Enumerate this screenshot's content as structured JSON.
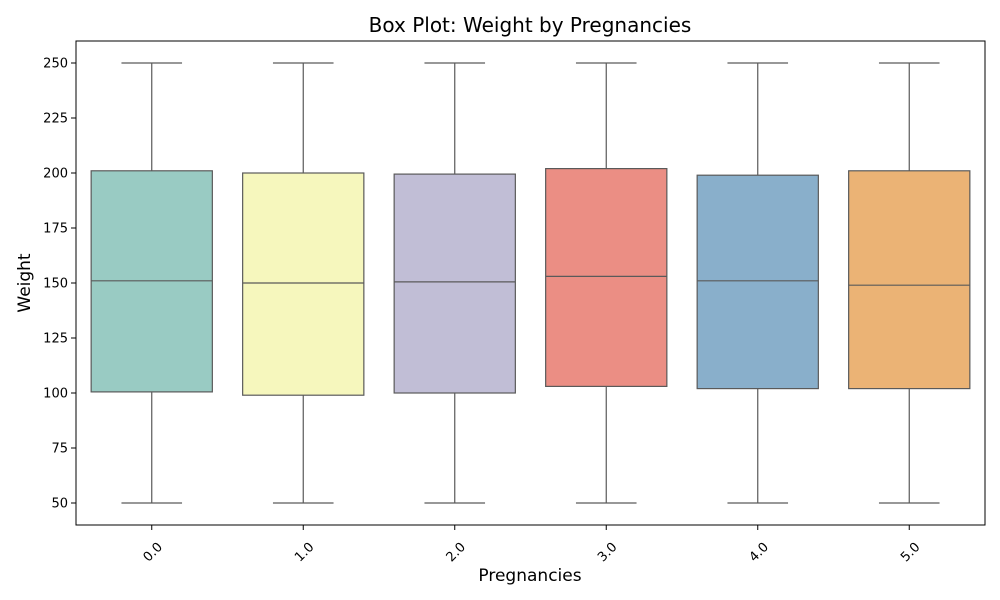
{
  "chart_data": {
    "type": "box",
    "title": "Box Plot: Weight by Pregnancies",
    "xlabel": "Pregnancies",
    "ylabel": "Weight",
    "ylim": [
      40,
      260
    ],
    "yticks": [
      50,
      75,
      100,
      125,
      150,
      175,
      200,
      225,
      250
    ],
    "categories": [
      "0.0",
      "1.0",
      "2.0",
      "3.0",
      "4.0",
      "5.0"
    ],
    "boxes": [
      {
        "category": "0.0",
        "whisker_low": 50,
        "q1": 100.5,
        "median": 151,
        "q3": 201,
        "whisker_high": 250,
        "color": "#99cbc3"
      },
      {
        "category": "1.0",
        "whisker_low": 50,
        "q1": 99,
        "median": 150,
        "q3": 200,
        "whisker_high": 250,
        "color": "#f6f7bd"
      },
      {
        "category": "2.0",
        "whisker_low": 50,
        "q1": 100,
        "median": 150.5,
        "q3": 199.5,
        "whisker_high": 250,
        "color": "#c1bed6"
      },
      {
        "category": "3.0",
        "whisker_low": 50,
        "q1": 103,
        "median": 153,
        "q3": 202,
        "whisker_high": 250,
        "color": "#eb8e84"
      },
      {
        "category": "4.0",
        "whisker_low": 50,
        "q1": 102,
        "median": 151,
        "q3": 199,
        "whisker_high": 250,
        "color": "#89afcb"
      },
      {
        "category": "5.0",
        "whisker_low": 50,
        "q1": 102,
        "median": 149,
        "q3": 201,
        "whisker_high": 250,
        "color": "#ebb375"
      }
    ]
  }
}
